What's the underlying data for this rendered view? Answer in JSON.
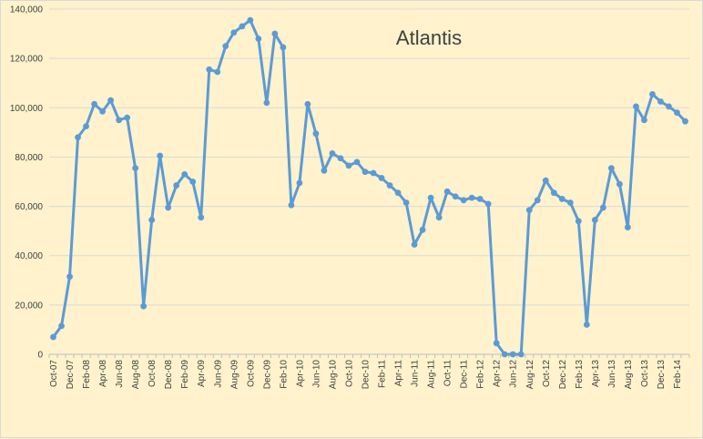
{
  "chart_data": {
    "type": "line",
    "title": "Atlantis",
    "xlabel": "",
    "ylabel": "",
    "ylim": [
      0,
      140000
    ],
    "yticks": [
      "0",
      "20,000",
      "40,000",
      "60,000",
      "80,000",
      "100,000",
      "120,000",
      "140,000"
    ],
    "ytick_values": [
      0,
      20000,
      40000,
      60000,
      80000,
      100000,
      120000,
      140000
    ],
    "grid": true,
    "legend": "none",
    "series_color": "#5b9bd5",
    "categories": [
      "Oct-07",
      "Nov-07",
      "Dec-07",
      "Jan-08",
      "Feb-08",
      "Mar-08",
      "Apr-08",
      "May-08",
      "Jun-08",
      "Jul-08",
      "Aug-08",
      "Sep-08",
      "Oct-08",
      "Nov-08",
      "Dec-08",
      "Jan-09",
      "Feb-09",
      "Mar-09",
      "Apr-09",
      "May-09",
      "Jun-09",
      "Jul-09",
      "Aug-09",
      "Sep-09",
      "Oct-09",
      "Nov-09",
      "Dec-09",
      "Jan-10",
      "Feb-10",
      "Mar-10",
      "Apr-10",
      "May-10",
      "Jun-10",
      "Jul-10",
      "Aug-10",
      "Sep-10",
      "Oct-10",
      "Nov-10",
      "Dec-10",
      "Jan-11",
      "Feb-11",
      "Mar-11",
      "Apr-11",
      "May-11",
      "Jun-11",
      "Jul-11",
      "Aug-11",
      "Sep-11",
      "Oct-11",
      "Nov-11",
      "Dec-11",
      "Jan-12",
      "Feb-12",
      "Mar-12",
      "Apr-12",
      "May-12",
      "Jun-12",
      "Jul-12",
      "Aug-12",
      "Sep-12",
      "Oct-12",
      "Nov-12",
      "Dec-12",
      "Jan-13",
      "Feb-13",
      "Mar-13",
      "Apr-13",
      "May-13",
      "Jun-13",
      "Jul-13",
      "Aug-13",
      "Sep-13",
      "Oct-13",
      "Nov-13",
      "Dec-13",
      "Jan-14",
      "Feb-14",
      "Mar-14"
    ],
    "tick_labels": [
      "Oct-07",
      "Dec-07",
      "Feb-08",
      "Apr-08",
      "Jun-08",
      "Aug-08",
      "Oct-08",
      "Dec-08",
      "Feb-09",
      "Apr-09",
      "Jun-09",
      "Aug-09",
      "Oct-09",
      "Dec-09",
      "Feb-10",
      "Apr-10",
      "Jun-10",
      "Aug-10",
      "Oct-10",
      "Dec-10",
      "Feb-11",
      "Apr-11",
      "Jun-11",
      "Aug-11",
      "Oct-11",
      "Dec-11",
      "Feb-12",
      "Apr-12",
      "Jun-12",
      "Aug-12",
      "Oct-12",
      "Dec-12",
      "Feb-13",
      "Apr-13",
      "Jun-13",
      "Aug-13",
      "Oct-13",
      "Dec-13",
      "Feb-14"
    ],
    "values": [
      7000,
      11500,
      31500,
      88000,
      92500,
      101500,
      98500,
      103000,
      95000,
      96000,
      75500,
      19500,
      54500,
      80500,
      59500,
      68500,
      73000,
      70000,
      55500,
      115500,
      114500,
      125000,
      130500,
      133000,
      135500,
      128000,
      102000,
      130000,
      124500,
      60500,
      69500,
      101500,
      89500,
      74500,
      81500,
      79500,
      76500,
      78000,
      74000,
      73500,
      71500,
      68500,
      65500,
      61500,
      44500,
      50500,
      63500,
      55500,
      66000,
      64000,
      62500,
      63500,
      63000,
      61000,
      4500,
      0,
      0,
      0,
      58500,
      62500,
      70500,
      65500,
      63000,
      61500,
      54000,
      12000,
      54500,
      59500,
      75500,
      69000,
      51500,
      100500,
      95000,
      105500,
      102500,
      100500,
      98000,
      94500
    ]
  }
}
